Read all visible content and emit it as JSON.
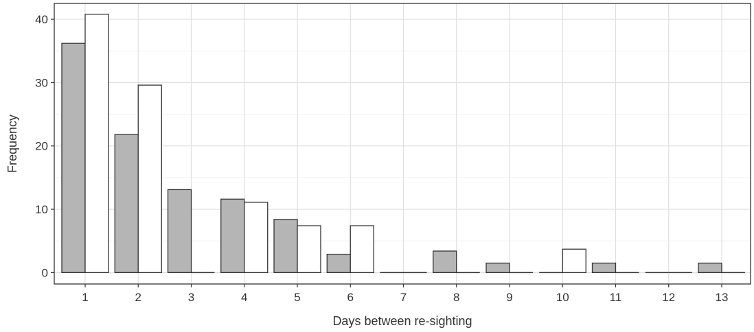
{
  "chart_data": {
    "type": "bar",
    "categories": [
      "1",
      "2",
      "3",
      "4",
      "5",
      "6",
      "7",
      "8",
      "9",
      "10",
      "11",
      "12",
      "13"
    ],
    "series": [
      {
        "values": [
          36.2,
          21.8,
          13.1,
          11.6,
          8.4,
          2.9,
          0,
          3.4,
          1.5,
          0,
          1.5,
          0,
          1.5
        ],
        "color": "#b5b5b5"
      },
      {
        "values": [
          40.8,
          29.6,
          0,
          11.1,
          7.4,
          7.4,
          0,
          0,
          0,
          3.7,
          0,
          0,
          0
        ],
        "color": "#ffffff"
      }
    ],
    "title": "",
    "xlabel": "Days between re-sighting",
    "ylabel": "Frequency",
    "ylim": [
      -1.8,
      42.5
    ],
    "yticks": [
      0,
      10,
      20,
      30,
      40
    ],
    "grid": true,
    "legend": "none",
    "colors": {
      "panel_border": "#333333",
      "grid_major": "#e0e0e0",
      "grid_minor": "#f2f2f2",
      "bar_stroke": "#333333"
    }
  }
}
